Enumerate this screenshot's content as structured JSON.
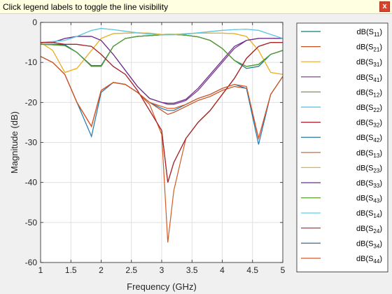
{
  "banner": {
    "text": "Click legend labels to toggle the line visibility",
    "close_label": "x"
  },
  "chart_data": {
    "type": "line",
    "xlabel": "Frequency (GHz)",
    "ylabel": "Magnitude (dB)",
    "xlim": [
      1,
      5
    ],
    "ylim": [
      -60,
      0
    ],
    "xticks": [
      1,
      1.5,
      2,
      2.5,
      3,
      3.5,
      4,
      4.5,
      5
    ],
    "yticks": [
      0,
      -10,
      -20,
      -30,
      -40,
      -50,
      -60
    ],
    "grid": true,
    "legend_position": "outside-right",
    "x": [
      1,
      1.2,
      1.4,
      1.6,
      1.84,
      2,
      2.2,
      2.4,
      2.6,
      2.8,
      3,
      3.1,
      3.2,
      3.4,
      3.6,
      3.8,
      4,
      4.2,
      4.4,
      4.6,
      4.8,
      5
    ],
    "series": [
      {
        "name": "S11",
        "label_prefix": "dB(S",
        "label_sub": "11",
        "label_suffix": ")",
        "color": "#0f7f82",
        "values": [
          -5.5,
          -5.5,
          -5.6,
          -7.5,
          -11,
          -11,
          -6,
          -4,
          -3.5,
          -3.3,
          -3.1,
          -3,
          -3,
          -3.2,
          -3.6,
          -4.5,
          -6.5,
          -9.5,
          -11.5,
          -11,
          -8,
          -7
        ]
      },
      {
        "name": "S21",
        "label_prefix": "dB(S",
        "label_sub": "21",
        "label_suffix": ")",
        "color": "#c8501e",
        "values": [
          -8.5,
          -10,
          -13,
          -20,
          -26,
          -17,
          -15,
          -15.5,
          -17.5,
          -20,
          -22,
          -23,
          -22.5,
          -21,
          -19.5,
          -18.5,
          -17,
          -16,
          -16.5,
          -29,
          -18,
          -13.5
        ]
      },
      {
        "name": "S31",
        "label_prefix": "dB(S",
        "label_sub": "31",
        "label_suffix": ")",
        "color": "#e8a82a",
        "values": [
          -5,
          -7,
          -12.5,
          -11.5,
          -7,
          -4,
          -2.8,
          -2.7,
          -2.6,
          -2.7,
          -3,
          -3.1,
          -3,
          -2.8,
          -2.7,
          -2.7,
          -2.7,
          -2.8,
          -3.5,
          -7,
          -12.5,
          -13
        ]
      },
      {
        "name": "S41",
        "label_prefix": "dB(S",
        "label_sub": "41",
        "label_suffix": ")",
        "color": "#7a2e8e",
        "values": [
          -5,
          -5,
          -4,
          -3.5,
          -3.5,
          -4.5,
          -8,
          -12,
          -16,
          -19,
          -20,
          -20.5,
          -20.5,
          -19.5,
          -17,
          -13.5,
          -10,
          -6.5,
          -4.5,
          -4,
          -4,
          -4
        ]
      },
      {
        "name": "S12",
        "label_prefix": "dB(S",
        "label_sub": "12",
        "label_suffix": ")",
        "color": "#78a32b",
        "values": [
          -5.5,
          -5.6,
          -5.8,
          -7.5,
          -11,
          -11,
          -6,
          -4,
          -3.5,
          -3.3,
          -3.1,
          -3,
          -3,
          -3.2,
          -3.6,
          -4.5,
          -6.5,
          -9.5,
          -11,
          -10.5,
          -8,
          -7
        ]
      },
      {
        "name": "S22",
        "label_prefix": "dB(S",
        "label_sub": "22",
        "label_suffix": ")",
        "color": "#4dbde0",
        "values": [
          -5,
          -4.8,
          -4.5,
          -3.5,
          -2,
          -1.5,
          -1.8,
          -2.2,
          -2.6,
          -2.9,
          -3.1,
          -3.1,
          -3.1,
          -2.9,
          -2.6,
          -2.3,
          -2,
          -1.8,
          -1.7,
          -2,
          -3,
          -4
        ]
      },
      {
        "name": "S32",
        "label_prefix": "dB(S",
        "label_sub": "32",
        "label_suffix": ")",
        "color": "#a01e28",
        "values": [
          -5,
          -5,
          -5.5,
          -5.5,
          -6,
          -8,
          -11,
          -13,
          -17,
          -22,
          -27,
          -40,
          -35,
          -29,
          -25,
          -22,
          -18,
          -14,
          -9,
          -6,
          -5,
          -5
        ]
      },
      {
        "name": "S42",
        "label_prefix": "dB(S",
        "label_sub": "42",
        "label_suffix": ")",
        "color": "#0a6a9a",
        "values": [
          -5.5,
          -5.5,
          -5.6,
          -7.5,
          -10.8,
          -10.8,
          -6,
          -4,
          -3.5,
          -3.3,
          -3.1,
          -3,
          -3,
          -3.2,
          -3.6,
          -4.5,
          -6.5,
          -9.5,
          -11,
          -10.5,
          -8,
          -7
        ]
      },
      {
        "name": "S13",
        "label_prefix": "dB(S",
        "label_sub": "13",
        "label_suffix": ")",
        "color": "#d45a20",
        "values": [
          -8.5,
          -10,
          -13,
          -20,
          -26,
          -17,
          -15,
          -15.5,
          -17.5,
          -20.5,
          -28,
          -55,
          -42,
          -29,
          -25,
          -22,
          -18,
          -14,
          -9,
          -6,
          -5,
          -5
        ]
      },
      {
        "name": "S23",
        "label_prefix": "dB(S",
        "label_sub": "23",
        "label_suffix": ")",
        "color": "#edb120",
        "values": [
          -5,
          -7,
          -12.5,
          -11.5,
          -7,
          -4,
          -2.8,
          -2.7,
          -2.6,
          -2.7,
          -3,
          -3.1,
          -3,
          -2.8,
          -2.7,
          -2.7,
          -2.7,
          -2.8,
          -3.5,
          -7,
          -12.5,
          -13
        ]
      },
      {
        "name": "S33",
        "label_prefix": "dB(S",
        "label_sub": "33",
        "label_suffix": ")",
        "color": "#6a2b87",
        "values": [
          -5,
          -5,
          -4,
          -3.5,
          -3.5,
          -4.5,
          -8,
          -12,
          -16,
          -19,
          -20,
          -20.2,
          -20.2,
          -19.2,
          -16.5,
          -13,
          -9.5,
          -6,
          -4.5,
          -4,
          -4,
          -4
        ]
      },
      {
        "name": "S43",
        "label_prefix": "dB(S",
        "label_sub": "43",
        "label_suffix": ")",
        "color": "#5e9e2e",
        "values": [
          -5.5,
          -5.6,
          -5.8,
          -7.5,
          -11,
          -11,
          -6,
          -4,
          -3.5,
          -3.3,
          -3.1,
          -3,
          -3,
          -3.2,
          -3.6,
          -4.5,
          -6.5,
          -9.5,
          -11,
          -10.5,
          -8,
          -7
        ]
      },
      {
        "name": "S14",
        "label_prefix": "dB(S",
        "label_sub": "14",
        "label_suffix": ")",
        "color": "#5fc8e6",
        "values": [
          -5,
          -4.8,
          -4.5,
          -3.5,
          -2,
          -1.5,
          -1.8,
          -2.2,
          -2.6,
          -2.9,
          -3.1,
          -3.1,
          -3.1,
          -2.9,
          -2.6,
          -2.3,
          -2,
          -1.8,
          -1.7,
          -2,
          -3,
          -4
        ]
      },
      {
        "name": "S24",
        "label_prefix": "dB(S",
        "label_sub": "24",
        "label_suffix": ")",
        "color": "#a4262c",
        "values": [
          -5,
          -5,
          -5.5,
          -5.5,
          -6,
          -8,
          -11,
          -13,
          -17,
          -22,
          -27,
          -40,
          -35,
          -29,
          -25,
          -22,
          -18,
          -14,
          -9,
          -6,
          -5,
          -5
        ]
      },
      {
        "name": "S34",
        "label_prefix": "dB(S",
        "label_sub": "34",
        "label_suffix": ")",
        "color": "#1f77b4",
        "values": [
          -8.5,
          -10,
          -13,
          -20,
          -28.5,
          -17.5,
          -15,
          -15.5,
          -17.5,
          -20,
          -21.5,
          -22,
          -22,
          -20.5,
          -19,
          -18,
          -16.5,
          -15.5,
          -16.5,
          -30.5,
          -18,
          -13.5
        ]
      },
      {
        "name": "S44",
        "label_prefix": "dB(S",
        "label_sub": "44",
        "label_suffix": ")",
        "color": "#d9541f",
        "values": [
          -8.5,
          -10,
          -13,
          -20,
          -26,
          -17,
          -15,
          -15.5,
          -17.5,
          -20,
          -21,
          -21.5,
          -21.5,
          -20.5,
          -19,
          -18,
          -16.5,
          -15.5,
          -16,
          -29,
          -18,
          -13.5
        ]
      }
    ]
  }
}
